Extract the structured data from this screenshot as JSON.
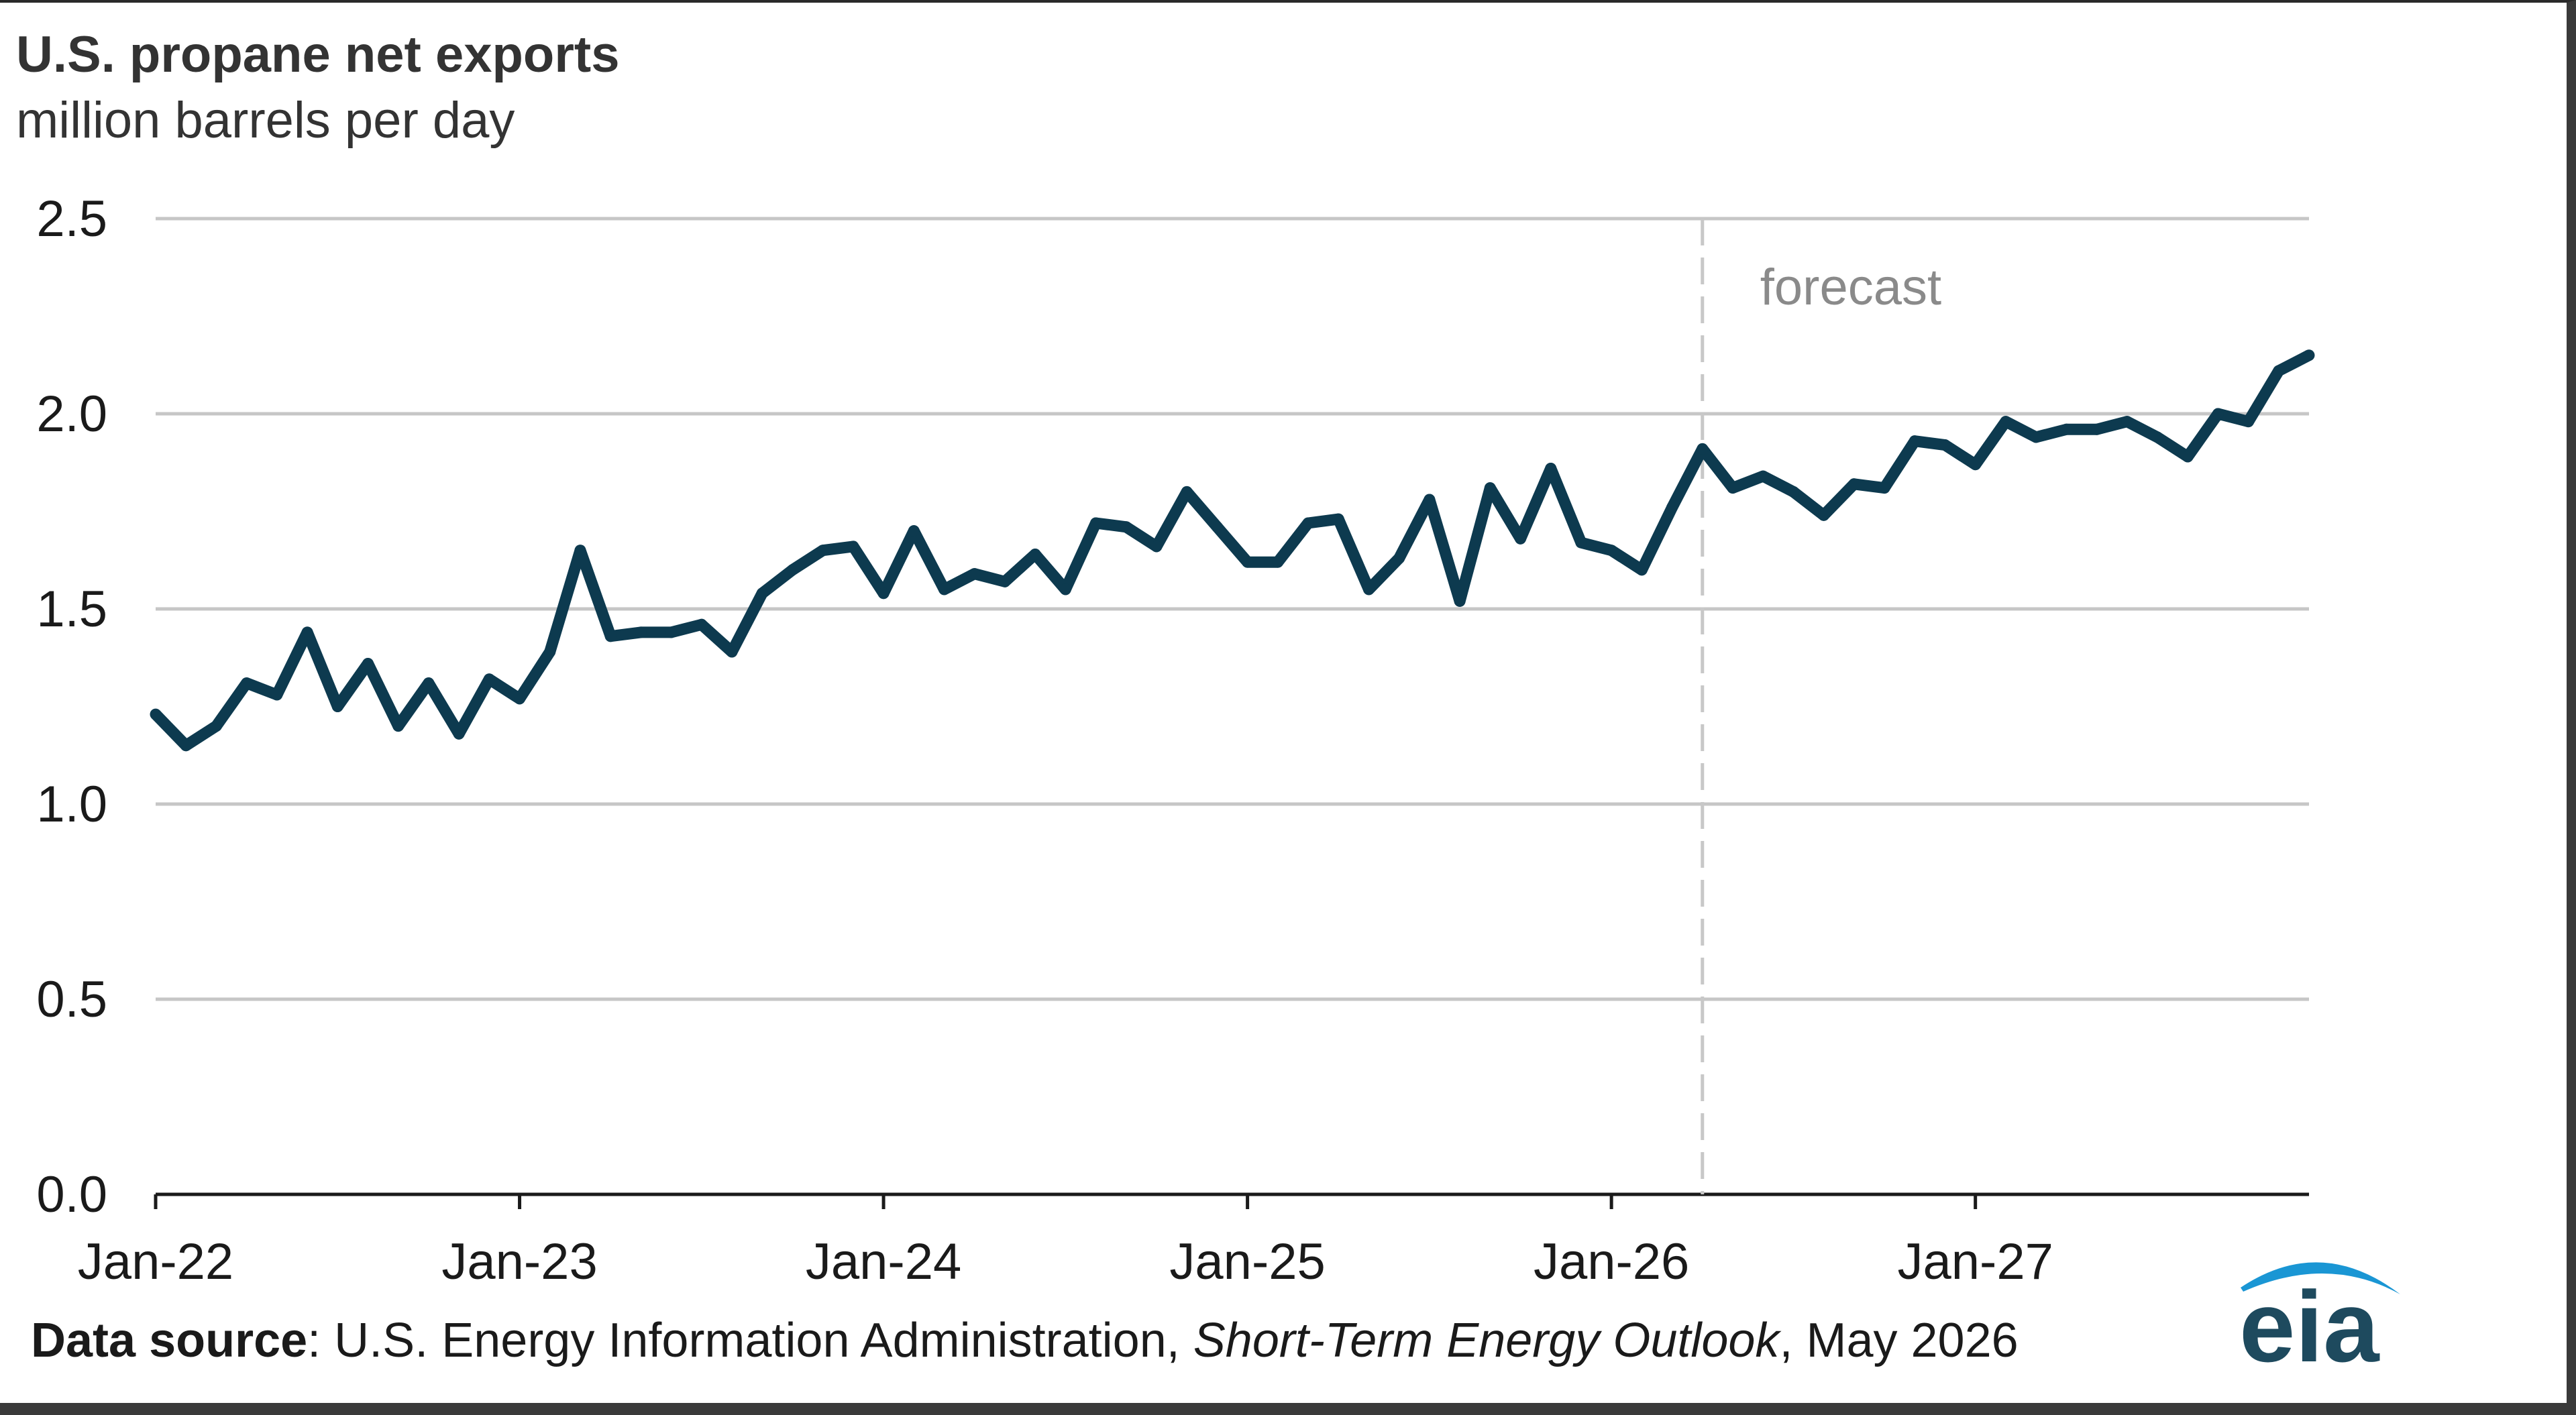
{
  "chart_data": {
    "type": "line",
    "title": "U.S. propane net exports",
    "subtitle": "million barrels per day",
    "ylim": [
      0,
      2.5
    ],
    "y_ticks": [
      "0.0",
      "0.5",
      "1.0",
      "1.5",
      "2.0",
      "2.5"
    ],
    "y_tick_values": [
      0,
      0.5,
      1.0,
      1.5,
      2.0,
      2.5
    ],
    "x_tick_labels": [
      "Jan-22",
      "Jan-23",
      "Jan-24",
      "Jan-25",
      "Jan-26",
      "Jan-27"
    ],
    "x_tick_months": [
      0,
      12,
      24,
      36,
      48,
      60
    ],
    "x_range_months": [
      0,
      71
    ],
    "grid": true,
    "forecast_label": "forecast",
    "forecast_start_month": 51,
    "series": [
      {
        "color": "#0d3a4f",
        "x": [
          "Jan-22",
          "Feb-22",
          "Mar-22",
          "Apr-22",
          "May-22",
          "Jun-22",
          "Jul-22",
          "Aug-22",
          "Sep-22",
          "Oct-22",
          "Nov-22",
          "Dec-22",
          "Jan-23",
          "Feb-23",
          "Mar-23",
          "Apr-23",
          "May-23",
          "Jun-23",
          "Jul-23",
          "Aug-23",
          "Sep-23",
          "Oct-23",
          "Nov-23",
          "Dec-23",
          "Jan-24",
          "Feb-24",
          "Mar-24",
          "Apr-24",
          "May-24",
          "Jun-24",
          "Jul-24",
          "Aug-24",
          "Sep-24",
          "Oct-24",
          "Nov-24",
          "Dec-24",
          "Jan-25",
          "Feb-25",
          "Mar-25",
          "Apr-25",
          "May-25",
          "Jun-25",
          "Jul-25",
          "Aug-25",
          "Sep-25",
          "Oct-25",
          "Nov-25",
          "Dec-25",
          "Jan-26",
          "Feb-26",
          "Mar-26",
          "Apr-26",
          "May-26",
          "Jun-26",
          "Jul-26",
          "Aug-26",
          "Sep-26",
          "Oct-26",
          "Nov-26",
          "Dec-26",
          "Jan-27",
          "Feb-27",
          "Mar-27",
          "Apr-27",
          "May-27",
          "Jun-27",
          "Jul-27",
          "Aug-27",
          "Sep-27",
          "Oct-27",
          "Nov-27",
          "Dec-27"
        ],
        "values": [
          1.23,
          1.15,
          1.2,
          1.31,
          1.28,
          1.44,
          1.25,
          1.36,
          1.2,
          1.31,
          1.18,
          1.32,
          1.27,
          1.39,
          1.65,
          1.43,
          1.44,
          1.44,
          1.46,
          1.39,
          1.54,
          1.6,
          1.65,
          1.66,
          1.54,
          1.7,
          1.55,
          1.59,
          1.57,
          1.64,
          1.55,
          1.72,
          1.71,
          1.66,
          1.8,
          1.71,
          1.62,
          1.62,
          1.72,
          1.73,
          1.55,
          1.63,
          1.78,
          1.52,
          1.81,
          1.68,
          1.86,
          1.67,
          1.65,
          1.6,
          1.76,
          1.91,
          1.81,
          1.84,
          1.8,
          1.74,
          1.82,
          1.81,
          1.93,
          1.92,
          1.87,
          1.98,
          1.94,
          1.96,
          1.96,
          1.98,
          1.94,
          1.89,
          2.0,
          1.98,
          2.11,
          2.15
        ]
      }
    ]
  },
  "source": {
    "label": "Data source",
    "text_before": ": U.S. Energy Information Administration, ",
    "publication": "Short-Term Energy Outlook",
    "text_after": ", May 2026"
  },
  "logo": {
    "text": "eia",
    "color_text": "#1e4a5e",
    "color_swoosh": "#1a96d4"
  }
}
